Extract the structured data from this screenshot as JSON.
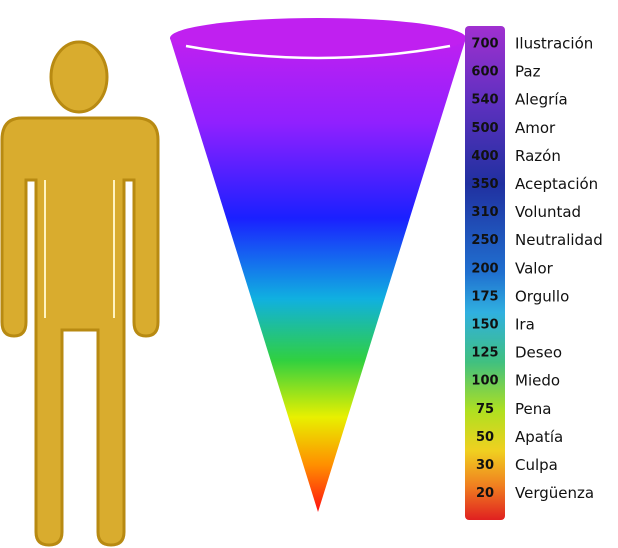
{
  "levels": [
    {
      "value": "700",
      "label": "Ilustración"
    },
    {
      "value": "600",
      "label": "Paz"
    },
    {
      "value": "540",
      "label": "Alegría"
    },
    {
      "value": "500",
      "label": "Amor"
    },
    {
      "value": "400",
      "label": "Razón"
    },
    {
      "value": "350",
      "label": "Aceptación"
    },
    {
      "value": "310",
      "label": "Voluntad"
    },
    {
      "value": "250",
      "label": "Neutralidad"
    },
    {
      "value": "200",
      "label": "Valor"
    },
    {
      "value": "175",
      "label": "Orgullo"
    },
    {
      "value": "150",
      "label": "Ira"
    },
    {
      "value": "125",
      "label": "Deseo"
    },
    {
      "value": "100",
      "label": "Miedo"
    },
    {
      "value": "75",
      "label": "Pena"
    },
    {
      "value": "50",
      "label": "Apatía"
    },
    {
      "value": "30",
      "label": "Culpa"
    },
    {
      "value": "20",
      "label": "Vergüenza"
    }
  ]
}
